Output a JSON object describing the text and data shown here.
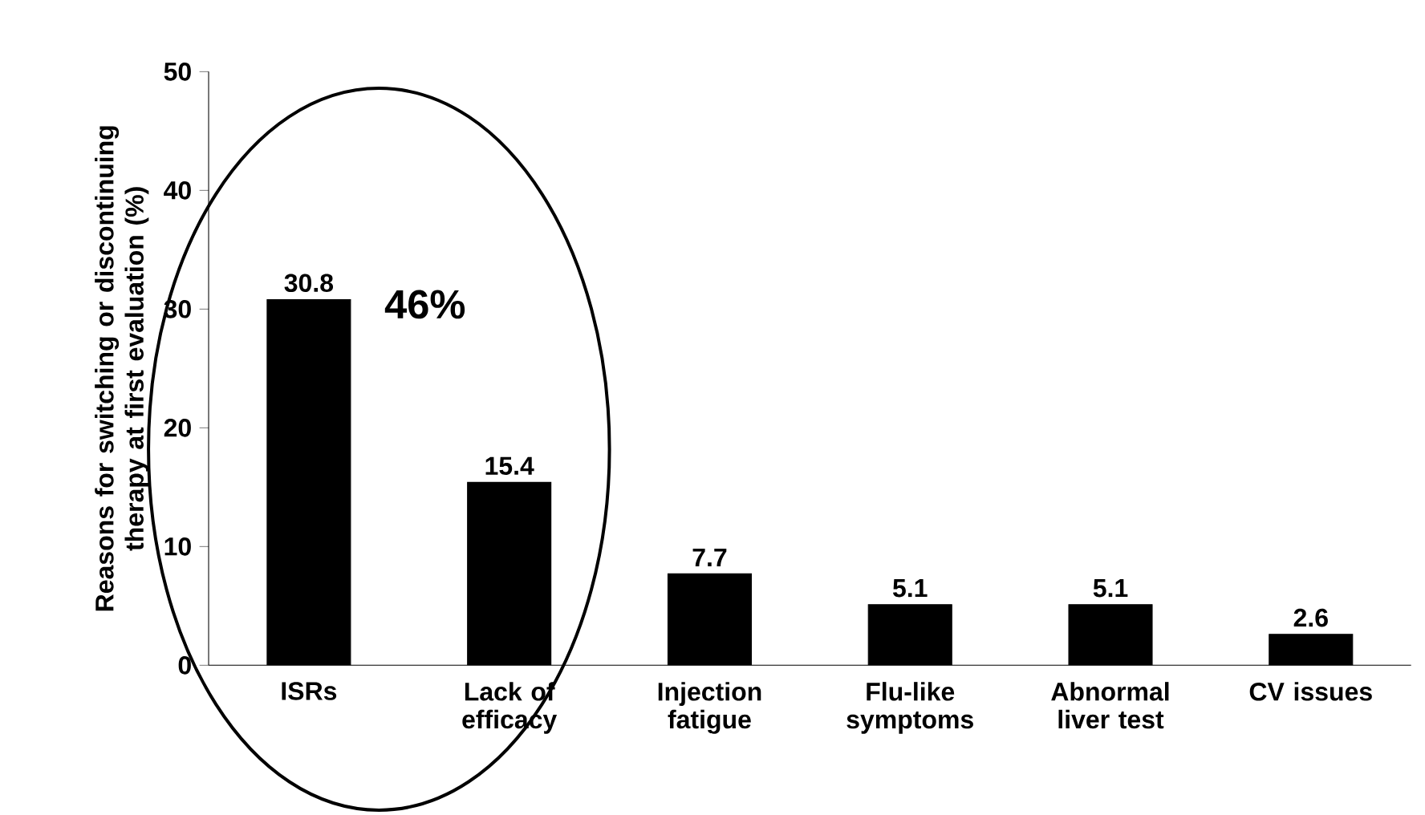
{
  "chart_data": {
    "type": "bar",
    "ylabel": "Reasons for switching or discontinuing therapy at first evaluation (%)",
    "categories": [
      "ISRs",
      "Lack of efficacy",
      "Injection fatigue",
      "Flu-like symptoms",
      "Abnormal liver test",
      "CV issues"
    ],
    "values": [
      30.8,
      15.4,
      7.7,
      5.1,
      5.1,
      2.6
    ],
    "color": "#000000",
    "ylim": [
      0,
      50
    ],
    "yticks": [
      0,
      10,
      20,
      30,
      40,
      50
    ],
    "data_labels": true,
    "grid": false,
    "annotations": [
      "46%"
    ]
  }
}
